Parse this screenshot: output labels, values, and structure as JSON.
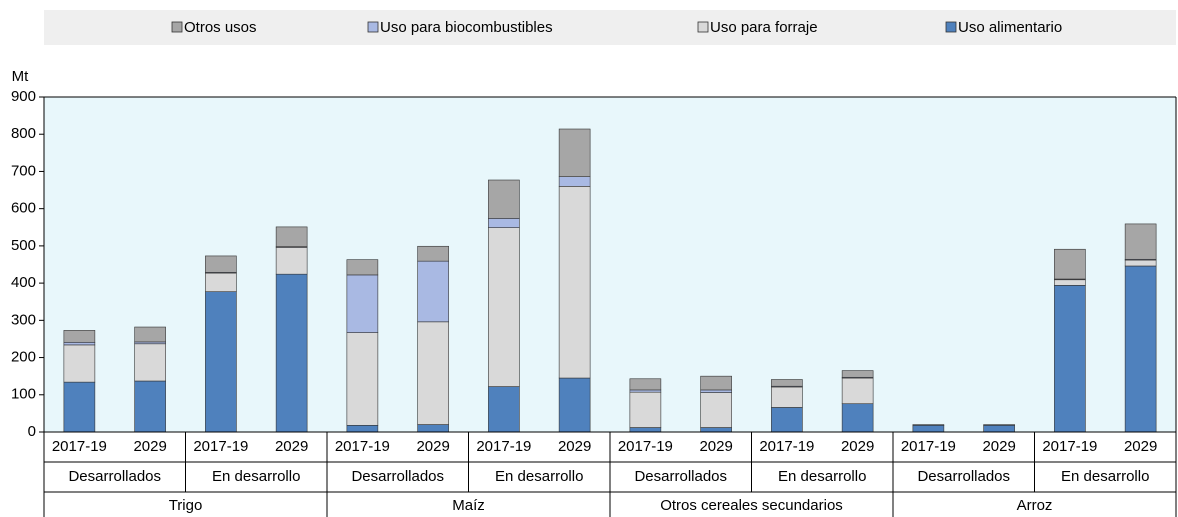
{
  "chart_data": {
    "type": "stacked_bar",
    "y_label": "Mt",
    "categories": [
      "2017-19",
      "2029",
      "2017-19",
      "2029",
      "2017-19",
      "2029",
      "2017-19",
      "2029",
      "2017-19",
      "2029",
      "2017-19",
      "2029",
      "2017-19",
      "2029",
      "2017-19",
      "2029"
    ],
    "subgroups": [
      "Desarrollados",
      "En desarrollo",
      "Desarrollados",
      "En desarrollo",
      "Desarrollados",
      "En desarrollo",
      "Desarrollados",
      "En desarrollo"
    ],
    "groups": [
      "Trigo",
      "Maíz",
      "Otros cereales secundarios",
      "Arroz"
    ],
    "series": [
      {
        "name": "Uso alimentario",
        "color": "#4f81bd",
        "values": [
          134,
          137,
          377,
          424,
          18,
          20,
          122,
          145,
          12,
          12,
          66,
          76,
          18,
          18,
          394,
          446
        ]
      },
      {
        "name": "Uso para forraje",
        "color": "#d9d9d9",
        "values": [
          100,
          100,
          50,
          72,
          249,
          276,
          427,
          515,
          95,
          94,
          55,
          69,
          0,
          0,
          15,
          16
        ]
      },
      {
        "name": "Uso para biocombustibles",
        "color": "#a9b9e3",
        "values": [
          7,
          5,
          2,
          2,
          155,
          163,
          25,
          26,
          6,
          7,
          2,
          2,
          0,
          0,
          2,
          2
        ]
      },
      {
        "name": "Otros usos",
        "color": "#a6a6a6",
        "values": [
          32,
          40,
          44,
          53,
          41,
          40,
          103,
          128,
          30,
          37,
          18,
          18,
          2,
          2,
          80,
          95
        ]
      }
    ],
    "ylim": [
      0,
      900
    ],
    "yticks": [
      0,
      100,
      200,
      300,
      400,
      500,
      600,
      700,
      800,
      900
    ],
    "legend": "top"
  }
}
